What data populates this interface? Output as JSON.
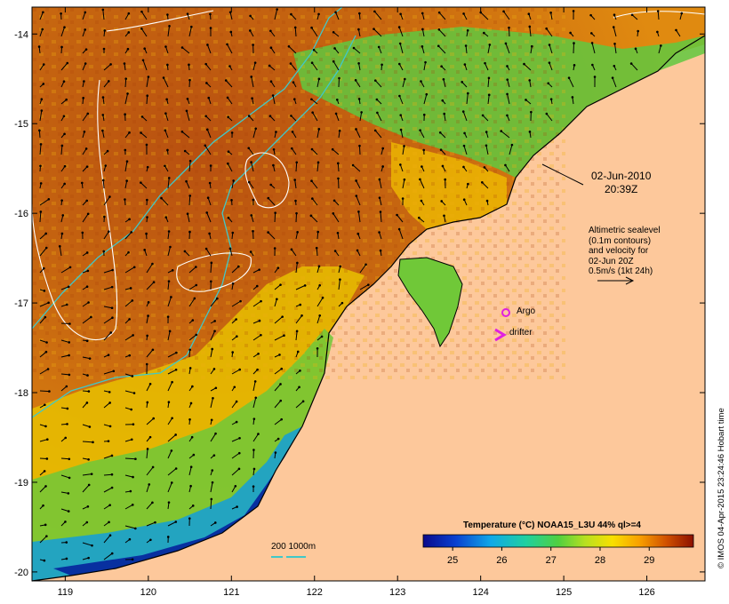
{
  "map": {
    "lat_ticks": [
      "-14",
      "-15",
      "-16",
      "-17",
      "-18",
      "-19",
      "-20"
    ],
    "lon_ticks": [
      "119",
      "120",
      "121",
      "122",
      "123",
      "124",
      "125",
      "126"
    ],
    "lat_range": [
      -20.1,
      -13.7
    ],
    "lon_range": [
      118.6,
      126.7
    ]
  },
  "annotations": {
    "date": "02-Jun-2010",
    "time": "20:39Z",
    "altimetry_lines": [
      "Altimetric sealevel",
      "(0.1m contours)",
      "and velocity for",
      "02-Jun 20Z",
      "0.5m/s (1kt 24h)"
    ],
    "argo_label": "Argo",
    "drifter_label": "drifter",
    "depth_label": "200  1000m",
    "credit": "© IMOS 04-Apr-2015 23:24:46 Hobart time"
  },
  "colorbar": {
    "title": "Temperature (°C) NOAA15_L3U 44% ql>=4",
    "ticks": [
      "25",
      "26",
      "27",
      "28",
      "29"
    ],
    "range": [
      24.4,
      29.9
    ]
  },
  "colors": {
    "land": "#fdc89b",
    "argo": "#e020e0",
    "drifter": "#e020e0",
    "isobath": "#40c8c8",
    "contour": "#ffffff"
  }
}
